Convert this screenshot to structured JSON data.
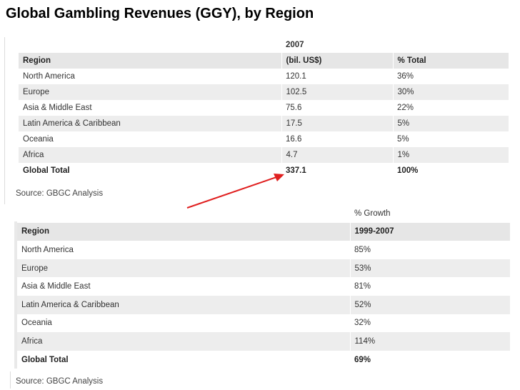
{
  "slide": {
    "title": "Global Gambling Revenues (GGY), by Region"
  },
  "table1": {
    "header_top": [
      "",
      "2007",
      ""
    ],
    "header": [
      "Region",
      "(bil. US$)",
      "% Total"
    ],
    "rows": [
      [
        "North America",
        "120.1",
        "36%"
      ],
      [
        "Europe",
        "102.5",
        "30%"
      ],
      [
        "Asia & Middle East",
        "75.6",
        "22%"
      ],
      [
        "Latin America & Caribbean",
        "17.5",
        "5%"
      ],
      [
        "Oceania",
        "16.6",
        "5%"
      ],
      [
        "Africa",
        "4.7",
        "1%"
      ]
    ],
    "total": [
      "Global Total",
      "337.1",
      "100%"
    ],
    "source": "Source: GBGC Analysis"
  },
  "table2": {
    "header_top": [
      "",
      "% Growth"
    ],
    "header": [
      "Region",
      "1999-2007"
    ],
    "rows": [
      [
        "North America",
        "85%"
      ],
      [
        "Europe",
        "53%"
      ],
      [
        "Asia & Middle East",
        "81%"
      ],
      [
        "Latin America & Caribbean",
        "52%"
      ],
      [
        "Oceania",
        "32%"
      ],
      [
        "Africa",
        "114%"
      ]
    ],
    "total": [
      "Global Total",
      "69%"
    ],
    "source": "Source: GBGC Analysis"
  },
  "colors": {
    "arrow": "#e02020",
    "header_bg": "#e6e6e6",
    "shade_bg": "#ededed"
  }
}
